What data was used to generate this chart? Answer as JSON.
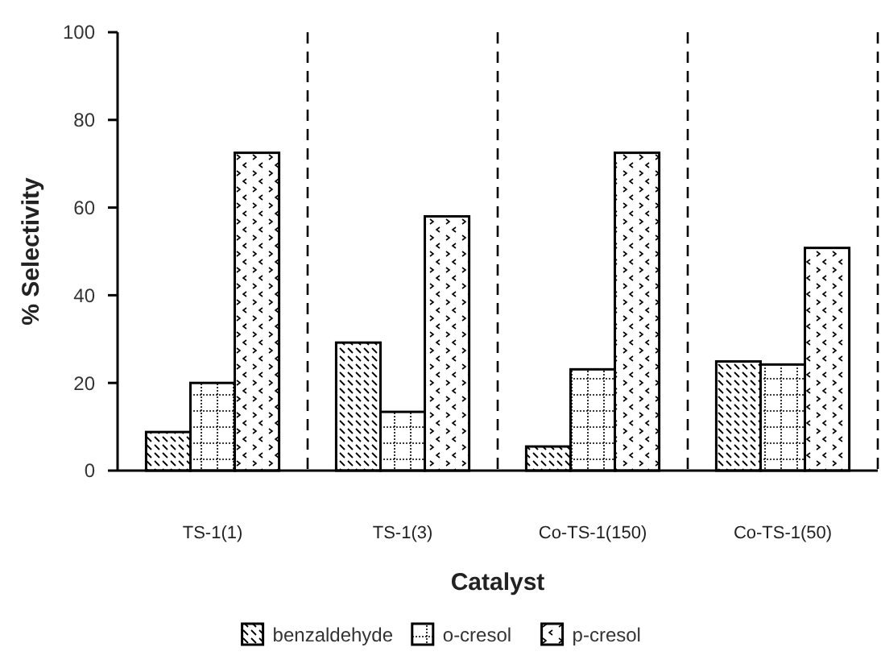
{
  "chart_data": {
    "type": "bar",
    "xlabel": "Catalyst",
    "ylabel": "% Selectivity",
    "categories": [
      "TS-1(1)",
      "TS-1(3)",
      "Co-TS-1(150)",
      "Co-TS-1(50)"
    ],
    "series": [
      {
        "name": "benzaldehyde",
        "color": "#000000",
        "values": [
          8.8,
          29.2,
          5.5,
          24.9
        ]
      },
      {
        "name": "o-cresol",
        "color": "#000000",
        "values": [
          20,
          13.4,
          23.1,
          24.2
        ]
      },
      {
        "name": "p-cresol",
        "color": "#000000",
        "values": [
          72.5,
          58,
          72.5,
          50.8
        ]
      }
    ],
    "ylim": [
      0,
      100
    ],
    "yticks": [
      0,
      20,
      40,
      60,
      80,
      100
    ],
    "grid": "x",
    "legend": "bottom"
  }
}
